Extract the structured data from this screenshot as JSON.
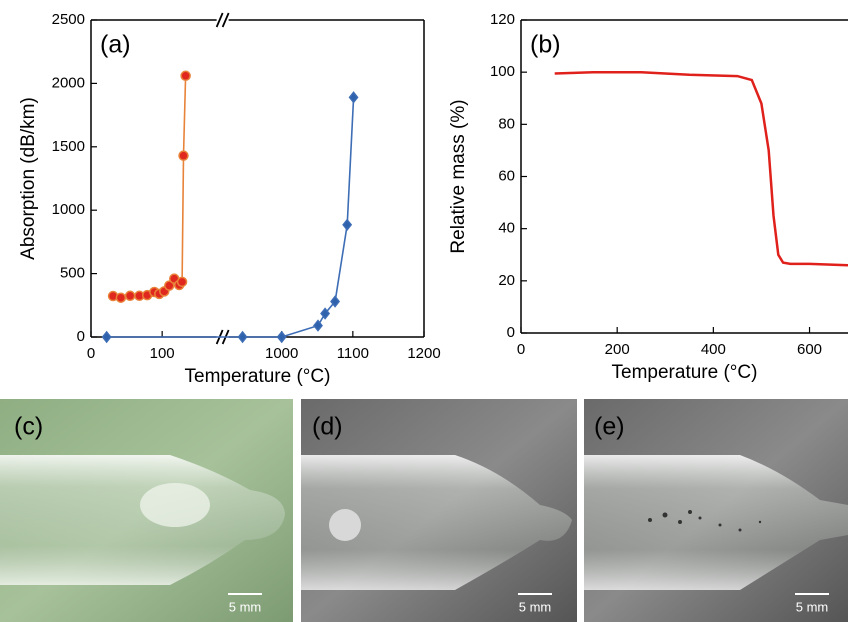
{
  "chart_data": [
    {
      "type": "line",
      "annotation": "(a)",
      "xlabel": "Temperature (°C)",
      "ylabel": "Absorption (dB/km)",
      "xlim": [
        0,
        1200
      ],
      "xbreak": [
        185,
        917
      ],
      "xticks": [
        0,
        100,
        1000,
        1100,
        1200
      ],
      "ylim": [
        0,
        2500
      ],
      "yticks": [
        0,
        500,
        1000,
        1500,
        2000,
        2500
      ],
      "series": [
        {
          "color": "#e8833a",
          "marker": "circle",
          "marker_fill": "#e0281e",
          "x": [
            31,
            42,
            55,
            68,
            79,
            89,
            96,
            103,
            110,
            117,
            124,
            128,
            130,
            133
          ],
          "values": [
            323,
            310,
            325,
            325,
            330,
            355,
            340,
            360,
            405,
            460,
            410,
            435,
            1430,
            2060
          ]
        },
        {
          "color": "#3d6db5",
          "marker": "diamond",
          "marker_fill": "#2f62ad",
          "x": [
            22,
            945,
            1000,
            1051,
            1061,
            1075,
            1092,
            1101
          ],
          "values": [
            0,
            0,
            0,
            90,
            185,
            280,
            885,
            1890
          ]
        }
      ]
    },
    {
      "type": "line",
      "annotation": "(b)",
      "xlabel": "Temperature (°C)",
      "ylabel": "Relative mass (%)",
      "xlim": [
        0,
        680
      ],
      "xticks": [
        0,
        200,
        400,
        600
      ],
      "ylim": [
        0,
        120
      ],
      "yticks": [
        0,
        20,
        40,
        60,
        80,
        100,
        120
      ],
      "series": [
        {
          "color": "#e0201b",
          "marker": "none",
          "marker_fill": "#e0201b",
          "x": [
            70,
            150,
            250,
            350,
            450,
            480,
            500,
            515,
            525,
            535,
            545,
            560,
            600,
            680
          ],
          "values": [
            99.5,
            100,
            100,
            99,
            98.5,
            97,
            88,
            70,
            45,
            30,
            27,
            26.5,
            26.5,
            26
          ]
        }
      ]
    }
  ],
  "photos": [
    {
      "label": "(c)",
      "scale": "5 mm"
    },
    {
      "label": "(d)",
      "scale": "5 mm"
    },
    {
      "label": "(e)",
      "scale": "5 mm"
    }
  ]
}
